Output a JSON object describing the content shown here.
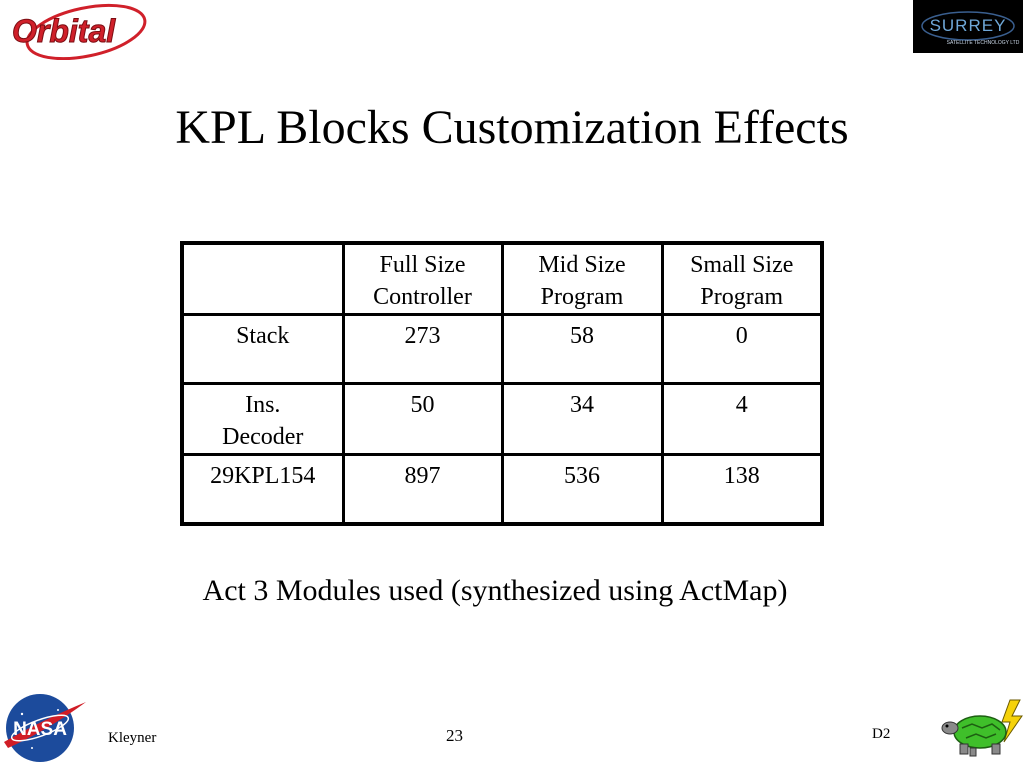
{
  "header": {
    "left_logo": "Orbital",
    "right_logo_main": "SURREY",
    "right_logo_sub": "SATELLITE TECHNOLOGY LTD"
  },
  "slide": {
    "title": "KPL Blocks Customization Effects",
    "caption": "Act 3 Modules used (synthesized using ActMap)"
  },
  "table": {
    "headers": [
      "",
      "Full Size Controller",
      "Mid Size Program",
      "Small Size Program"
    ],
    "rows": [
      [
        "Stack",
        "273",
        "58",
        "0"
      ],
      [
        "Ins. Decoder",
        "50",
        "34",
        "4"
      ],
      [
        "29KPL154",
        "897",
        "536",
        "138"
      ]
    ]
  },
  "footer": {
    "author": "Kleyner",
    "page": "23",
    "session": "D2",
    "left_logo": "NASA"
  },
  "colors": {
    "orbital_red": "#d0202a",
    "nasa_blue": "#1c4b9c",
    "nasa_red": "#d01d26",
    "surrey_blue": "#6fa8d8"
  },
  "icons": {
    "bottom_right": "turtle-lightning-icon"
  }
}
